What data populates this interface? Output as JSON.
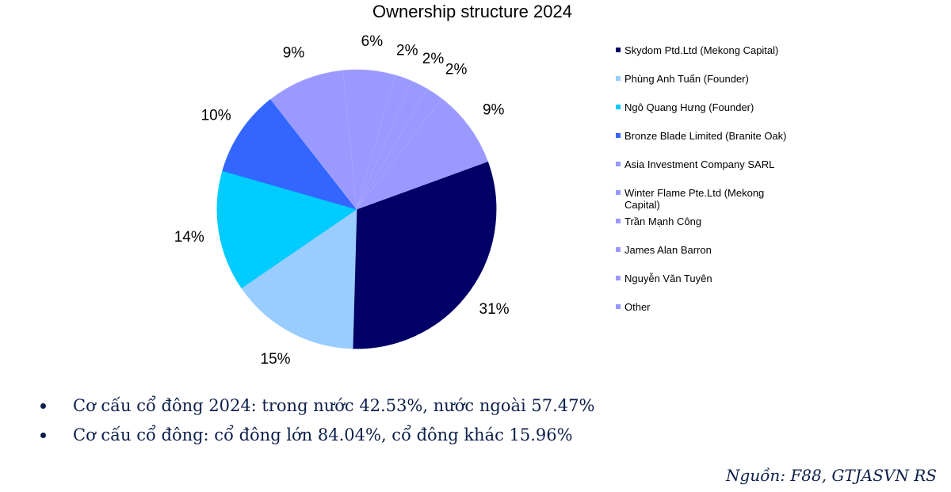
{
  "chart_data": {
    "type": "pie",
    "title": "Ownership structure 2024",
    "slices": [
      {
        "label": "Skydom Ptd.Ltd (Mekong Capital)",
        "value": 31,
        "display": "31%",
        "color": "#000066"
      },
      {
        "label": "Phùng Anh Tuấn (Founder)",
        "value": 15,
        "display": "15%",
        "color": "#99ccff"
      },
      {
        "label": "Ngô Quang Hưng (Founder)",
        "value": 14,
        "display": "14%",
        "color": "#00ccff"
      },
      {
        "label": "Bronze Blade Limited (Branite Oak)",
        "value": 10,
        "display": "10%",
        "color": "#3366ff"
      },
      {
        "label": "Asia Investment Company SARL",
        "value": 9,
        "display": "9%",
        "color": "#9999ff"
      },
      {
        "label": "Winter Flame Pte.Ltd (Mekong Capital)",
        "value": 6,
        "display": "6%",
        "color": "#9999ff"
      },
      {
        "label": "Trần Mạnh Công",
        "value": 2,
        "display": "2%",
        "color": "#9999ff"
      },
      {
        "label": "James Alan Barron",
        "value": 2,
        "display": "2%",
        "color": "#9999ff"
      },
      {
        "label": "Nguyễn Văn Tuyên",
        "value": 2,
        "display": "2%",
        "color": "#9999ff"
      },
      {
        "label": "Other",
        "value": 9,
        "display": "9%",
        "color": "#9999ff"
      }
    ],
    "legend_position": "right"
  },
  "bullets": [
    "Cơ cấu cổ đông 2024: trong nước 42.53%, nước ngoài 57.47%",
    "Cơ cấu cổ đông: cổ đông lớn 84.04%, cổ đông khác 15.96%"
  ],
  "source": "Nguồn: F88, GTJASVN RS"
}
